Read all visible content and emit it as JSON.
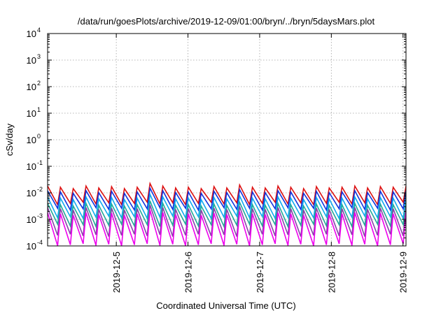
{
  "chart_data": {
    "type": "line",
    "title": "/data/run/goesPlots/archive/2019-12-09/01:00/bryn/../bryn/5daysMars.plot",
    "xlabel": "Coordinated Universal Time (UTC)",
    "ylabel": "cSv/day",
    "x_range": [
      "2019-12-04T01:00",
      "2019-12-09T01:00"
    ],
    "x_ticks": [
      {
        "label": "2019-12-5",
        "value": "2019-12-05T00:00"
      },
      {
        "label": "2019-12-6",
        "value": "2019-12-06T00:00"
      },
      {
        "label": "2019-12-7",
        "value": "2019-12-07T00:00"
      },
      {
        "label": "2019-12-8",
        "value": "2019-12-08T00:00"
      },
      {
        "label": "2019-12-9",
        "value": "2019-12-09T00:00"
      }
    ],
    "y_scale": "log",
    "ylim": [
      0.0001,
      10000
    ],
    "y_ticks": [
      {
        "base": "10",
        "exp": "-4",
        "value": 0.0001
      },
      {
        "base": "10",
        "exp": "-3",
        "value": 0.001
      },
      {
        "base": "10",
        "exp": "-2",
        "value": 0.01
      },
      {
        "base": "10",
        "exp": "-1",
        "value": 0.1
      },
      {
        "base": "10",
        "exp": "0",
        "value": 1
      },
      {
        "base": "10",
        "exp": "1",
        "value": 10
      },
      {
        "base": "10",
        "exp": "2",
        "value": 100
      },
      {
        "base": "10",
        "exp": "3",
        "value": 1000
      },
      {
        "base": "10",
        "exp": "4",
        "value": 10000
      }
    ],
    "grid": true,
    "sawtooth": {
      "cycles_per_day": 5.6,
      "peak_pattern": [
        1.0,
        0.9,
        0.8,
        1.0,
        0.85,
        0.95,
        0.8,
        0.9,
        1.25,
        1.0,
        0.85,
        0.9,
        0.8,
        0.95,
        0.85,
        1.1,
        0.9,
        0.85,
        1.0,
        0.9,
        0.8,
        0.95,
        0.85,
        0.9,
        1.0,
        0.85,
        0.95,
        0.9
      ]
    },
    "series": [
      {
        "color": "#dd1111",
        "peak": 0.018,
        "trough": 0.004
      },
      {
        "color": "#1133dd",
        "peak": 0.012,
        "trough": 0.0025
      },
      {
        "color": "#11aaee",
        "peak": 0.007,
        "trough": 0.0012
      },
      {
        "color": "#22aa99",
        "peak": 0.004,
        "trough": 0.0006
      },
      {
        "color": "#8844aa",
        "peak": 0.0028,
        "trough": 0.00025
      },
      {
        "color": "#ee00ee",
        "peak": 0.0018,
        "trough": 0.00011
      }
    ]
  }
}
